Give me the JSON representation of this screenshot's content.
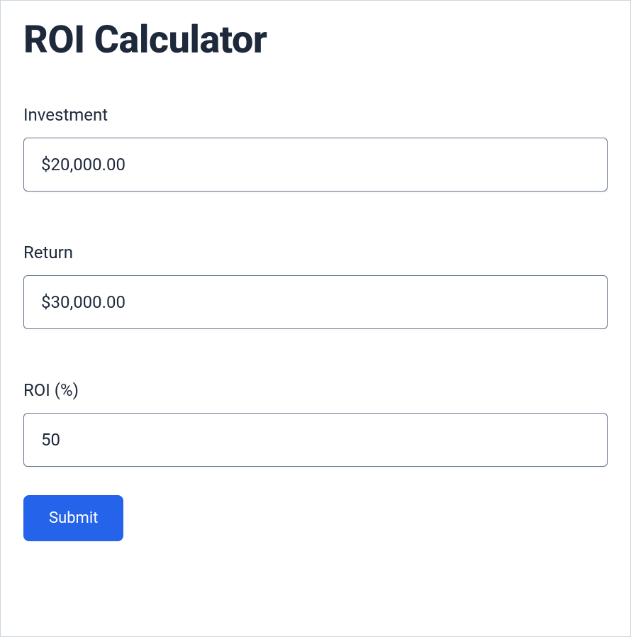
{
  "title": "ROI Calculator",
  "fields": {
    "investment": {
      "label": "Investment",
      "value": "$20,000.00"
    },
    "return": {
      "label": "Return",
      "value": "$30,000.00"
    },
    "roi": {
      "label": "ROI (%)",
      "value": "50"
    }
  },
  "submit_label": "Submit",
  "colors": {
    "text": "#1e293b",
    "border": "#64748b",
    "container_border": "#cbd5e1",
    "button_bg": "#2563eb",
    "button_text": "#ffffff",
    "background": "#ffffff"
  }
}
